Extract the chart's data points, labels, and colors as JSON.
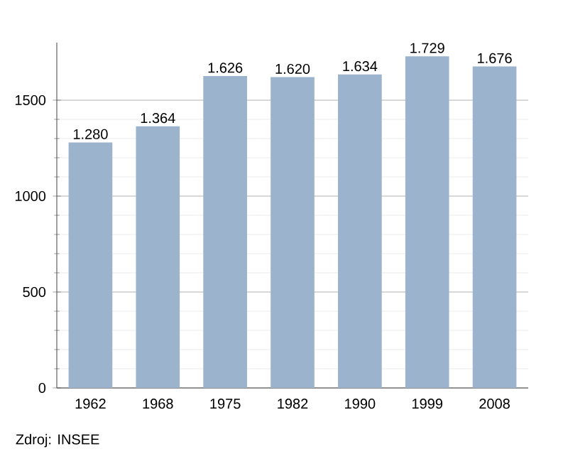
{
  "chart_data": {
    "type": "bar",
    "categories": [
      "1962",
      "1968",
      "1975",
      "1982",
      "1990",
      "1999",
      "2008"
    ],
    "values": [
      1280,
      1364,
      1626,
      1620,
      1634,
      1729,
      1676
    ],
    "value_labels": [
      "1.280",
      "1.364",
      "1.626",
      "1.620",
      "1.634",
      "1.729",
      "1.676"
    ],
    "color": "#9bb3cc",
    "ylim": [
      0,
      1800
    ],
    "yticks": [
      0,
      500,
      1000,
      1500
    ],
    "grid": "y",
    "annotations": [
      "Zdroj: INSEE"
    ]
  }
}
